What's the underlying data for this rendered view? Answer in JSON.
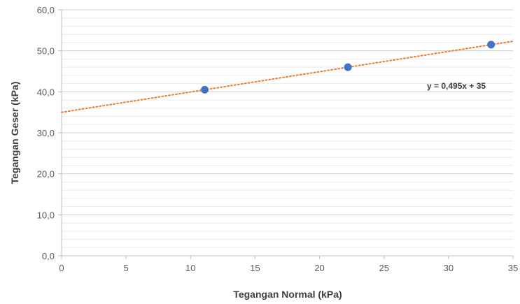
{
  "chart_data": {
    "type": "scatter",
    "title": "",
    "xlabel": "Tegangan Normal (kPa)",
    "ylabel": "Tegangan Geser (kPa)",
    "xlim": [
      0,
      35
    ],
    "ylim": [
      0,
      60
    ],
    "x_ticks": [
      "0",
      "5",
      "10",
      "15",
      "20",
      "25",
      "30",
      "35"
    ],
    "y_ticks": [
      "0,0",
      "10,0",
      "20,0",
      "30,0",
      "40,0",
      "50,0",
      "60,0"
    ],
    "grid": true,
    "series": [
      {
        "x": [
          11.1,
          22.2,
          33.3
        ],
        "values": [
          40.5,
          46.0,
          51.5
        ]
      }
    ],
    "trendline": {
      "type": "linear",
      "slope": 0.495,
      "intercept": 35,
      "label": "y = 0,495x + 35"
    },
    "colors": {
      "points": "#4472c4",
      "trendline": "#ed7d31",
      "grid": "#d9d9d9"
    }
  }
}
